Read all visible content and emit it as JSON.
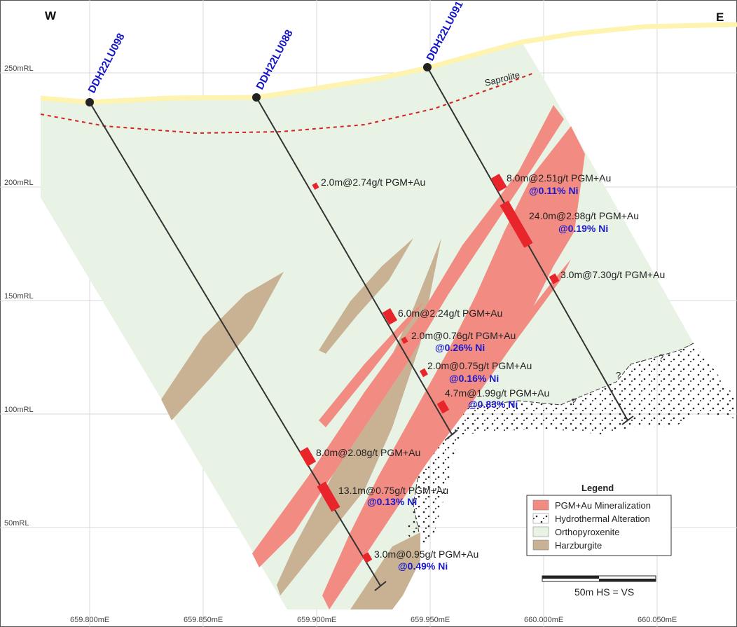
{
  "compass": {
    "west": "W",
    "east": "E"
  },
  "elevation_labels": [
    "250mRL",
    "200mRL",
    "150mRL",
    "100mRL",
    "50mRL"
  ],
  "easting_labels": [
    "659.800mE",
    "659.850mE",
    "659.900mE",
    "659.950mE",
    "660.000mE",
    "660.050mE"
  ],
  "drillholes": [
    "DDH22LU098",
    "DDH22LU088",
    "DDH22LU091"
  ],
  "saprolite_label": "Saprolite",
  "question_mark": "?",
  "intercepts": [
    {
      "grade": "2.0m@2.74g/t PGM+Au",
      "ni": ""
    },
    {
      "grade": "8.0m@2.51g/t PGM+Au",
      "ni": "@0.11% Ni"
    },
    {
      "grade": "24.0m@2.98g/t PGM+Au",
      "ni": "@0.19% Ni"
    },
    {
      "grade": "3.0m@7.30g/t PGM+Au",
      "ni": ""
    },
    {
      "grade": "6.0m@2.24g/t PGM+Au",
      "ni": ""
    },
    {
      "grade": "2.0m@0.76g/t PGM+Au",
      "ni": "@0.26% Ni"
    },
    {
      "grade": "2.0m@0.75g/t PGM+Au",
      "ni": "@0.16% Ni"
    },
    {
      "grade": "4.7m@1.99g/t PGM+Au",
      "ni": "@0.83% Ni"
    },
    {
      "grade": "8.0m@2.08g/t PGM+Au",
      "ni": ""
    },
    {
      "grade": "13.1m@0.75g/t PGM+Au",
      "ni": "@0.13% Ni"
    },
    {
      "grade": "3.0m@0.95g/t PGM+Au",
      "ni": "@0.49% Ni"
    }
  ],
  "legend": {
    "title": "Legend",
    "items": [
      {
        "label": "PGM+Au Mineralization",
        "color": "#f28c82"
      },
      {
        "label": "Hydrothermal Alteration",
        "color": "pattern-dots"
      },
      {
        "label": "Orthopyroxenite",
        "color": "#e8f3e6"
      },
      {
        "label": "Harzburgite",
        "color": "#c9b294"
      }
    ]
  },
  "scale_bar": {
    "label": "50m  HS = VS"
  },
  "colors": {
    "orthopyroxenite": "#e8f3e6",
    "mineralization": "#f28c82",
    "harzburgite": "#c9b294",
    "intercept": "#e8252b",
    "saprolite_line": "#d62020",
    "surface": "#fff3b0",
    "hole_label": "#1515c8"
  }
}
